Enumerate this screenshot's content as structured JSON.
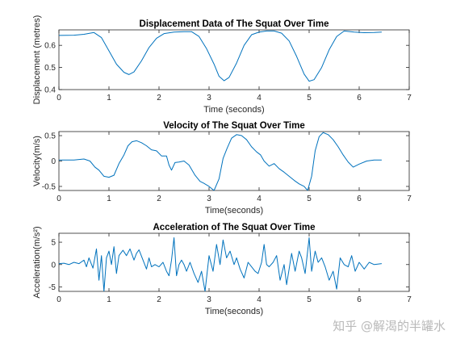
{
  "chart_data": [
    {
      "type": "line",
      "title": "Displacement Data of The Squat Over Time",
      "xlabel": "Time (seconds)",
      "ylabel": "Displacement (metres)",
      "xlim": [
        0,
        7
      ],
      "ylim": [
        0.4,
        0.67
      ],
      "xticks": [
        0,
        1,
        2,
        3,
        4,
        5,
        6,
        7
      ],
      "yticks": [
        0.4,
        0.5,
        0.6
      ],
      "ytick_labels": [
        "0.4",
        "0.5",
        "0.6"
      ],
      "color": "#0072BD",
      "series": [
        {
          "x": [
            0,
            0.3,
            0.5,
            0.7,
            0.85,
            1.0,
            1.15,
            1.3,
            1.4,
            1.5,
            1.65,
            1.8,
            1.95,
            2.1,
            2.3,
            2.5,
            2.65,
            2.8,
            2.95,
            3.1,
            3.2,
            3.3,
            3.4,
            3.55,
            3.7,
            3.85,
            4.0,
            4.15,
            4.3,
            4.45,
            4.6,
            4.75,
            4.9,
            5.0,
            5.1,
            5.25,
            5.4,
            5.55,
            5.7,
            5.9,
            6.1,
            6.3,
            6.45
          ],
          "y": [
            0.645,
            0.646,
            0.65,
            0.658,
            0.635,
            0.575,
            0.515,
            0.478,
            0.468,
            0.48,
            0.53,
            0.59,
            0.632,
            0.653,
            0.66,
            0.662,
            0.662,
            0.64,
            0.585,
            0.515,
            0.46,
            0.44,
            0.455,
            0.52,
            0.6,
            0.648,
            0.66,
            0.665,
            0.665,
            0.655,
            0.62,
            0.55,
            0.47,
            0.438,
            0.445,
            0.5,
            0.58,
            0.64,
            0.665,
            0.66,
            0.657,
            0.658,
            0.66
          ]
        }
      ]
    },
    {
      "type": "line",
      "title": "Velocity of The Squat Over Time",
      "xlabel": "Time(seconds)",
      "ylabel": "Velocity(m/s)",
      "xlim": [
        0,
        7
      ],
      "ylim": [
        -0.58,
        0.58
      ],
      "xticks": [
        0,
        1,
        2,
        3,
        4,
        5,
        6,
        7
      ],
      "yticks": [
        -0.5,
        0,
        0.5
      ],
      "ytick_labels": [
        "-0.5",
        "0",
        "0.5"
      ],
      "color": "#0072BD",
      "series": [
        {
          "x": [
            0,
            0.3,
            0.5,
            0.62,
            0.72,
            0.8,
            0.9,
            1.0,
            1.1,
            1.2,
            1.3,
            1.38,
            1.46,
            1.55,
            1.65,
            1.75,
            1.85,
            1.95,
            2.05,
            2.15,
            2.2,
            2.25,
            2.32,
            2.4,
            2.5,
            2.6,
            2.72,
            2.82,
            2.9,
            3.0,
            3.1,
            3.2,
            3.28,
            3.36,
            3.45,
            3.55,
            3.65,
            3.75,
            3.85,
            3.95,
            4.03,
            4.1,
            4.2,
            4.3,
            4.4,
            4.5,
            4.6,
            4.7,
            4.8,
            4.9,
            4.97,
            5.05,
            5.12,
            5.2,
            5.28,
            5.38,
            5.48,
            5.58,
            5.68,
            5.78,
            5.88,
            6.0,
            6.15,
            6.3,
            6.45
          ],
          "y": [
            0.02,
            0.02,
            0.04,
            0.0,
            -0.12,
            -0.18,
            -0.3,
            -0.32,
            -0.28,
            -0.05,
            0.12,
            0.3,
            0.38,
            0.4,
            0.36,
            0.3,
            0.22,
            0.2,
            0.1,
            0.1,
            -0.08,
            -0.18,
            -0.03,
            -0.02,
            0.0,
            -0.08,
            -0.28,
            -0.4,
            -0.44,
            -0.5,
            -0.58,
            -0.35,
            0.05,
            0.25,
            0.45,
            0.52,
            0.5,
            0.42,
            0.28,
            0.18,
            0.12,
            0.0,
            -0.1,
            -0.05,
            -0.15,
            -0.22,
            -0.3,
            -0.38,
            -0.45,
            -0.5,
            -0.58,
            -0.3,
            0.2,
            0.48,
            0.56,
            0.52,
            0.42,
            0.28,
            0.12,
            -0.02,
            -0.12,
            -0.06,
            0.0,
            0.02,
            0.02
          ]
        }
      ]
    },
    {
      "type": "line",
      "title": "Acceleration of The Squat Over Time",
      "xlabel": "Time(seconds)",
      "ylabel": "Acceleration(m/s²)",
      "xlim": [
        0,
        7
      ],
      "ylim": [
        -6,
        7
      ],
      "xticks": [
        0,
        1,
        2,
        3,
        4,
        5,
        6,
        7
      ],
      "yticks": [
        -5,
        0,
        5
      ],
      "ytick_labels": [
        "-5",
        "0",
        "5"
      ],
      "color": "#0072BD",
      "series": [
        {
          "x": [
            0,
            0.1,
            0.2,
            0.3,
            0.4,
            0.5,
            0.55,
            0.6,
            0.68,
            0.75,
            0.8,
            0.85,
            0.9,
            0.95,
            1.0,
            1.05,
            1.1,
            1.15,
            1.2,
            1.28,
            1.35,
            1.42,
            1.5,
            1.55,
            1.6,
            1.68,
            1.75,
            1.8,
            1.85,
            1.92,
            2.0,
            2.08,
            2.15,
            2.2,
            2.25,
            2.3,
            2.35,
            2.4,
            2.45,
            2.5,
            2.55,
            2.62,
            2.7,
            2.78,
            2.85,
            2.92,
            3.0,
            3.08,
            3.15,
            3.22,
            3.28,
            3.35,
            3.42,
            3.5,
            3.55,
            3.62,
            3.7,
            3.78,
            3.85,
            3.92,
            3.98,
            4.05,
            4.1,
            4.15,
            4.2,
            4.28,
            4.35,
            4.42,
            4.5,
            4.55,
            4.6,
            4.65,
            4.72,
            4.8,
            4.85,
            4.92,
            5.0,
            5.05,
            5.12,
            5.18,
            5.25,
            5.32,
            5.4,
            5.48,
            5.55,
            5.62,
            5.7,
            5.78,
            5.85,
            5.92,
            6.0,
            6.1,
            6.2,
            6.3,
            6.45
          ],
          "y": [
            0.2,
            0.3,
            0.0,
            0.5,
            0.2,
            1.0,
            -0.5,
            1.5,
            -0.8,
            3.5,
            -3.5,
            2.0,
            -6.0,
            1.5,
            3.0,
            0.0,
            4.0,
            -2.0,
            2.0,
            3.2,
            2.0,
            3.5,
            1.0,
            2.5,
            3.3,
            1.0,
            -1.0,
            1.5,
            -0.5,
            0.0,
            -0.5,
            0.5,
            -1.5,
            -2.5,
            1.0,
            6.0,
            -2.5,
            0.0,
            1.0,
            0.0,
            -1.5,
            0.5,
            -2.0,
            -4.0,
            -1.5,
            -6.0,
            2.0,
            -1.5,
            4.5,
            0.0,
            5.5,
            1.5,
            3.0,
            0.0,
            1.5,
            -1.0,
            -3.0,
            0.5,
            -0.5,
            -1.5,
            -2.0,
            0.5,
            4.5,
            0.0,
            -0.5,
            0.5,
            2.0,
            -3.5,
            0.0,
            -4.5,
            -1.0,
            2.5,
            -1.5,
            3.0,
            1.5,
            -2.0,
            6.0,
            -1.5,
            3.0,
            0.5,
            1.5,
            -0.5,
            -3.5,
            -1.5,
            -5.5,
            1.5,
            0.0,
            -0.5,
            2.0,
            -1.5,
            0.5,
            -1.0,
            0.5,
            0.0,
            0.2
          ]
        }
      ]
    }
  ],
  "watermark": "知乎 @解渴的半罐水"
}
